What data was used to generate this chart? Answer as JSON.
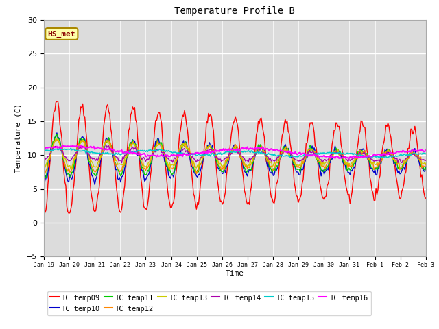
{
  "title": "Temperature Profile B",
  "xlabel": "Time",
  "ylabel": "Temperature (C)",
  "ylim": [
    -5,
    30
  ],
  "background_color": "#dcdcdc",
  "fig_background": "#ffffff",
  "series_order": [
    "TC_temp09",
    "TC_temp10",
    "TC_temp11",
    "TC_temp12",
    "TC_temp13",
    "TC_temp14",
    "TC_temp15",
    "TC_temp16"
  ],
  "series": {
    "TC_temp09": {
      "color": "#ff0000",
      "lw": 1.0
    },
    "TC_temp10": {
      "color": "#0000cc",
      "lw": 1.0
    },
    "TC_temp11": {
      "color": "#00cc00",
      "lw": 1.0
    },
    "TC_temp12": {
      "color": "#ff8800",
      "lw": 1.0
    },
    "TC_temp13": {
      "color": "#cccc00",
      "lw": 1.0
    },
    "TC_temp14": {
      "color": "#aa00aa",
      "lw": 1.0
    },
    "TC_temp15": {
      "color": "#00cccc",
      "lw": 1.2
    },
    "TC_temp16": {
      "color": "#ff00ff",
      "lw": 1.5
    }
  },
  "xtick_labels": [
    "Jan 19",
    "Jan 20",
    "Jan 21",
    "Jan 22",
    "Jan 23",
    "Jan 24",
    "Jan 25",
    "Jan 26",
    "Jan 27",
    "Jan 28",
    "Jan 29",
    "Jan 30",
    "Jan 31",
    "Feb 1",
    "Feb 2",
    "Feb 3"
  ],
  "ytick_vals": [
    -5,
    0,
    5,
    10,
    15,
    20,
    25,
    30
  ],
  "annotation_text": "HS_met",
  "annotation_box_color": "#ffffaa",
  "annotation_border_color": "#aa8800"
}
